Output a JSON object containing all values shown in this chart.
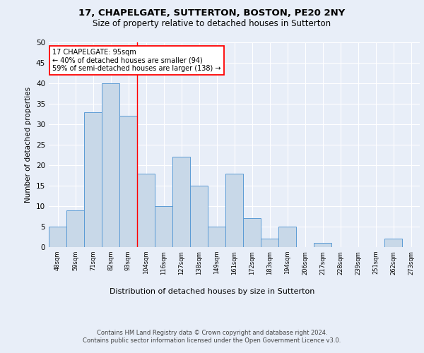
{
  "title1": "17, CHAPELGATE, SUTTERTON, BOSTON, PE20 2NY",
  "title2": "Size of property relative to detached houses in Sutterton",
  "xlabel": "Distribution of detached houses by size in Sutterton",
  "ylabel": "Number of detached properties",
  "categories": [
    "48sqm",
    "59sqm",
    "71sqm",
    "82sqm",
    "93sqm",
    "104sqm",
    "116sqm",
    "127sqm",
    "138sqm",
    "149sqm",
    "161sqm",
    "172sqm",
    "183sqm",
    "194sqm",
    "206sqm",
    "217sqm",
    "228sqm",
    "239sqm",
    "251sqm",
    "262sqm",
    "273sqm"
  ],
  "values": [
    5,
    9,
    33,
    40,
    32,
    18,
    10,
    22,
    15,
    5,
    18,
    7,
    2,
    5,
    0,
    1,
    0,
    0,
    0,
    2,
    0
  ],
  "bar_color": "#c8d8e8",
  "bar_edge_color": "#5b9bd5",
  "marker_line_index": 4,
  "annotation_text": "17 CHAPELGATE: 95sqm\n← 40% of detached houses are smaller (94)\n59% of semi-detached houses are larger (138) →",
  "annotation_box_color": "white",
  "annotation_box_edge": "red",
  "marker_line_color": "red",
  "ylim": [
    0,
    50
  ],
  "yticks": [
    0,
    5,
    10,
    15,
    20,
    25,
    30,
    35,
    40,
    45,
    50
  ],
  "footer": "Contains HM Land Registry data © Crown copyright and database right 2024.\nContains public sector information licensed under the Open Government Licence v3.0.",
  "background_color": "#e8eef8",
  "plot_background": "#e8eef8",
  "title1_fontsize": 9.5,
  "title2_fontsize": 8.5
}
